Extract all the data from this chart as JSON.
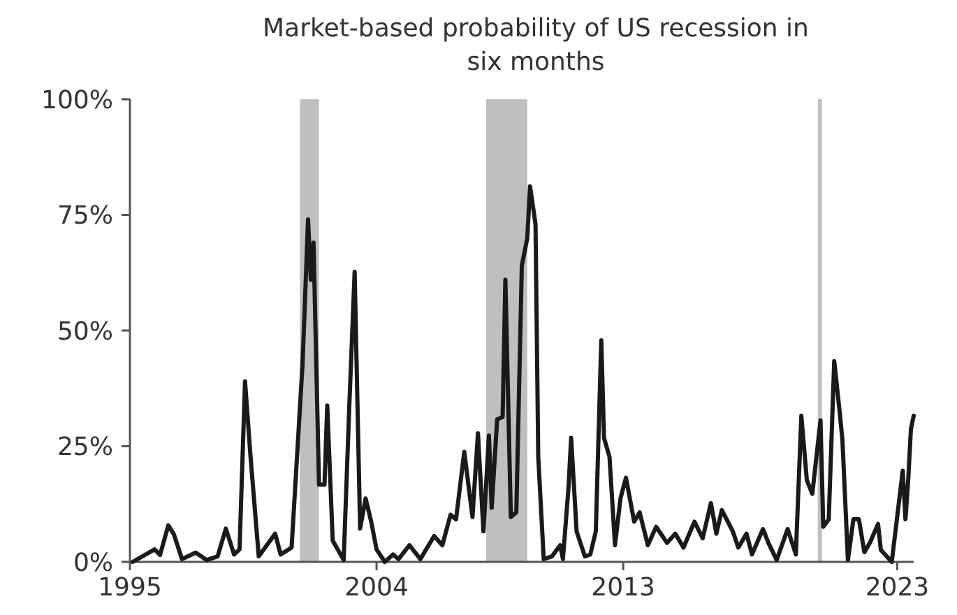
{
  "chart_data": {
    "type": "line",
    "title": "Market-based probability of US recession in six months",
    "xlim": [
      1995,
      2023.6
    ],
    "xticks": [
      1995,
      2004,
      2013,
      2023
    ],
    "ylim": [
      0,
      100
    ],
    "yticks": [
      {
        "value": 0,
        "label": "0%"
      },
      {
        "value": 25,
        "label": "25%"
      },
      {
        "value": 50,
        "label": "50%"
      },
      {
        "value": 75,
        "label": "75%"
      },
      {
        "value": 100,
        "label": "100%"
      }
    ],
    "grid": false,
    "marker": "none",
    "line_style": "solid",
    "bands": [
      {
        "axis": "x",
        "from": 2001.2,
        "to": 2001.9,
        "color": "#bfbfbf"
      },
      {
        "axis": "x",
        "from": 2008.0,
        "to": 2009.5,
        "color": "#bfbfbf"
      },
      {
        "axis": "x",
        "from": 2020.1,
        "to": 2020.25,
        "color": "#bfbfbf"
      }
    ],
    "series": [
      {
        "color": "#1a1a1a",
        "x": [
          1995.1,
          1995.9,
          1996.1,
          1996.4,
          1996.6,
          1996.9,
          1997.4,
          1997.8,
          1998.2,
          1998.5,
          1998.8,
          1999.0,
          1999.2,
          1999.4,
          1999.7,
          2000.3,
          2000.5,
          2000.9,
          2001.3,
          2001.5,
          2001.6,
          2001.7,
          2001.9,
          2002.1,
          2002.2,
          2002.4,
          2002.8,
          2003.0,
          2003.2,
          2003.4,
          2003.6,
          2003.8,
          2004.0,
          2004.3,
          2004.6,
          2004.8,
          2005.2,
          2005.6,
          2006.1,
          2006.4,
          2006.7,
          2006.9,
          2007.2,
          2007.5,
          2007.7,
          2007.9,
          2008.1,
          2008.2,
          2008.4,
          2008.6,
          2008.7,
          2008.9,
          2009.1,
          2009.3,
          2009.5,
          2009.6,
          2009.8,
          2009.9,
          2010.1,
          2010.4,
          2010.7,
          2010.8,
          2011.0,
          2011.1,
          2011.3,
          2011.6,
          2011.8,
          2012.0,
          2012.2,
          2012.3,
          2012.5,
          2012.7,
          2012.9,
          2013.1,
          2013.4,
          2013.6,
          2013.9,
          2014.2,
          2014.6,
          2014.9,
          2015.2,
          2015.6,
          2015.9,
          2016.2,
          2016.4,
          2016.6,
          2017.0,
          2017.2,
          2017.5,
          2017.7,
          2018.1,
          2018.3,
          2018.6,
          2019.0,
          2019.3,
          2019.5,
          2019.7,
          2019.9,
          2020.2,
          2020.3,
          2020.5,
          2020.7,
          2020.9,
          2021.0,
          2021.2,
          2021.4,
          2021.6,
          2021.8,
          2022.0,
          2022.3,
          2022.4,
          2022.8,
          2023.2,
          2023.3,
          2023.4,
          2023.5,
          2023.6
        ],
        "values": [
          0,
          2.7,
          1.5,
          7.9,
          6,
          0.6,
          2,
          0.4,
          1.2,
          7.2,
          1.6,
          2.7,
          39,
          22.8,
          1.2,
          6.1,
          1.6,
          3.1,
          42.9,
          74,
          61,
          69,
          16.7,
          16.7,
          33.8,
          4.6,
          0.4,
          32.9,
          62.7,
          7.2,
          13.7,
          8.8,
          2.7,
          0,
          1.6,
          0.6,
          3.6,
          0.6,
          5.6,
          3.6,
          10.2,
          9.2,
          23.8,
          9.7,
          27.8,
          6.6,
          27.3,
          11.7,
          30.8,
          31.3,
          61,
          9.7,
          10.7,
          64,
          70,
          81.2,
          73,
          22.7,
          0.6,
          1.2,
          3.6,
          0.6,
          15.7,
          26.8,
          6.6,
          1.2,
          1.6,
          6.6,
          47.9,
          26.8,
          22.7,
          3.6,
          13.7,
          18.2,
          8.7,
          10.7,
          3.6,
          7.6,
          4.1,
          6.1,
          3.1,
          8.7,
          5.1,
          12.7,
          6.1,
          11.2,
          6.6,
          3.1,
          6.1,
          1.6,
          7.1,
          4.1,
          0.4,
          7.1,
          1.6,
          31.6,
          17.7,
          14.7,
          30.6,
          7.6,
          9.2,
          43.4,
          32.3,
          26.3,
          0.4,
          9.2,
          9.2,
          2.1,
          4.1,
          8.2,
          2.6,
          0,
          19.7,
          9.2,
          17.7,
          28.8,
          31.6
        ]
      }
    ]
  }
}
